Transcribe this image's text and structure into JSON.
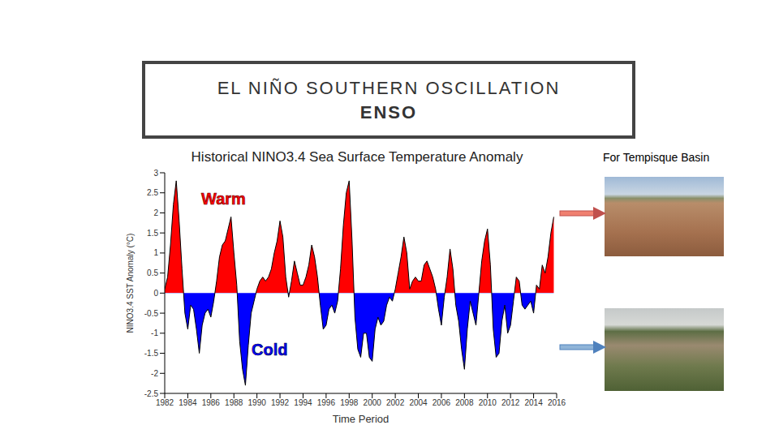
{
  "slide": {
    "title": "EL NIÑO SOUTHERN OSCILLATION",
    "subtitle": "ENSO",
    "side_label": "For Tempisque Basin"
  },
  "chart_data": {
    "type": "area",
    "title": "Historical NINO3.4 Sea Surface Temperature Anomaly",
    "x_label": "Time Period",
    "y_label": "NINO3.4 SST Anomaly (°C)",
    "x": [
      1982.0,
      1982.25,
      1982.5,
      1982.75,
      1983.0,
      1983.25,
      1983.5,
      1983.75,
      1984.0,
      1984.25,
      1984.5,
      1984.75,
      1985.0,
      1985.25,
      1985.5,
      1985.75,
      1986.0,
      1986.25,
      1986.5,
      1986.75,
      1987.0,
      1987.25,
      1987.5,
      1987.75,
      1988.0,
      1988.25,
      1988.5,
      1988.75,
      1989.0,
      1989.25,
      1989.5,
      1989.75,
      1990.0,
      1990.25,
      1990.5,
      1990.75,
      1991.0,
      1991.25,
      1991.5,
      1991.75,
      1992.0,
      1992.25,
      1992.5,
      1992.75,
      1993.0,
      1993.25,
      1993.5,
      1993.75,
      1994.0,
      1994.25,
      1994.5,
      1994.75,
      1995.0,
      1995.25,
      1995.5,
      1995.75,
      1996.0,
      1996.25,
      1996.5,
      1996.75,
      1997.0,
      1997.25,
      1997.5,
      1997.75,
      1998.0,
      1998.25,
      1998.5,
      1998.75,
      1999.0,
      1999.25,
      1999.5,
      1999.75,
      2000.0,
      2000.25,
      2000.5,
      2000.75,
      2001.0,
      2001.25,
      2001.5,
      2001.75,
      2002.0,
      2002.25,
      2002.5,
      2002.75,
      2003.0,
      2003.25,
      2003.5,
      2003.75,
      2004.0,
      2004.25,
      2004.5,
      2004.75,
      2005.0,
      2005.25,
      2005.5,
      2005.75,
      2006.0,
      2006.25,
      2006.5,
      2006.75,
      2007.0,
      2007.25,
      2007.5,
      2007.75,
      2008.0,
      2008.25,
      2008.5,
      2008.75,
      2009.0,
      2009.25,
      2009.5,
      2009.75,
      2010.0,
      2010.25,
      2010.5,
      2010.75,
      2011.0,
      2011.25,
      2011.5,
      2011.75,
      2012.0,
      2012.25,
      2012.5,
      2012.75,
      2013.0,
      2013.25,
      2013.5,
      2013.75,
      2014.0,
      2014.25,
      2014.5,
      2014.75,
      2015.0,
      2015.25,
      2015.5,
      2015.75
    ],
    "values": [
      0.1,
      0.4,
      1.2,
      2.2,
      2.8,
      1.8,
      0.6,
      -0.5,
      -0.9,
      -0.3,
      -0.4,
      -0.9,
      -1.5,
      -0.8,
      -0.5,
      -0.4,
      -0.6,
      -0.2,
      0.3,
      0.9,
      1.2,
      1.3,
      1.6,
      1.9,
      1.0,
      0.2,
      -1.2,
      -1.9,
      -2.3,
      -1.3,
      -0.5,
      -0.2,
      0.1,
      0.3,
      0.4,
      0.3,
      0.4,
      0.6,
      1.0,
      1.3,
      1.8,
      1.4,
      0.4,
      -0.1,
      0.3,
      0.8,
      0.5,
      0.2,
      0.2,
      0.4,
      0.7,
      1.2,
      0.9,
      0.4,
      -0.3,
      -0.9,
      -0.8,
      -0.4,
      -0.3,
      -0.5,
      -0.2,
      0.6,
      1.7,
      2.5,
      2.8,
      1.3,
      -0.6,
      -1.4,
      -1.6,
      -1.0,
      -1.0,
      -1.6,
      -1.7,
      -0.9,
      -0.6,
      -0.8,
      -0.7,
      -0.3,
      -0.1,
      -0.2,
      0.1,
      0.5,
      0.9,
      1.4,
      1.0,
      0.1,
      0.3,
      0.4,
      0.3,
      0.3,
      0.7,
      0.8,
      0.6,
      0.4,
      0.1,
      -0.4,
      -0.8,
      -0.1,
      0.4,
      1.1,
      0.6,
      -0.3,
      -0.7,
      -1.4,
      -1.9,
      -0.9,
      -0.2,
      -0.5,
      -0.8,
      0.0,
      0.8,
      1.3,
      1.6,
      0.7,
      -0.9,
      -1.6,
      -1.5,
      -0.7,
      -0.3,
      -1.0,
      -0.8,
      -0.2,
      0.4,
      0.3,
      -0.3,
      -0.4,
      -0.3,
      -0.2,
      -0.5,
      0.2,
      0.1,
      0.7,
      0.5,
      0.9,
      1.5,
      1.9
    ],
    "xlim": [
      1982,
      2016
    ],
    "xticks": [
      1982,
      1984,
      1986,
      1988,
      1990,
      1992,
      1994,
      1996,
      1998,
      2000,
      2002,
      2004,
      2006,
      2008,
      2010,
      2012,
      2014,
      2016
    ],
    "ylim": [
      -2.5,
      3
    ],
    "yticks": [
      -2.5,
      -2,
      -1.5,
      -1,
      -0.5,
      0,
      0.5,
      1,
      1.5,
      2,
      2.5,
      3
    ],
    "grid": false,
    "annotations": [
      {
        "text": "Warm",
        "color": "#ff0000"
      },
      {
        "text": "Cold",
        "color": "#0000ff"
      }
    ]
  }
}
